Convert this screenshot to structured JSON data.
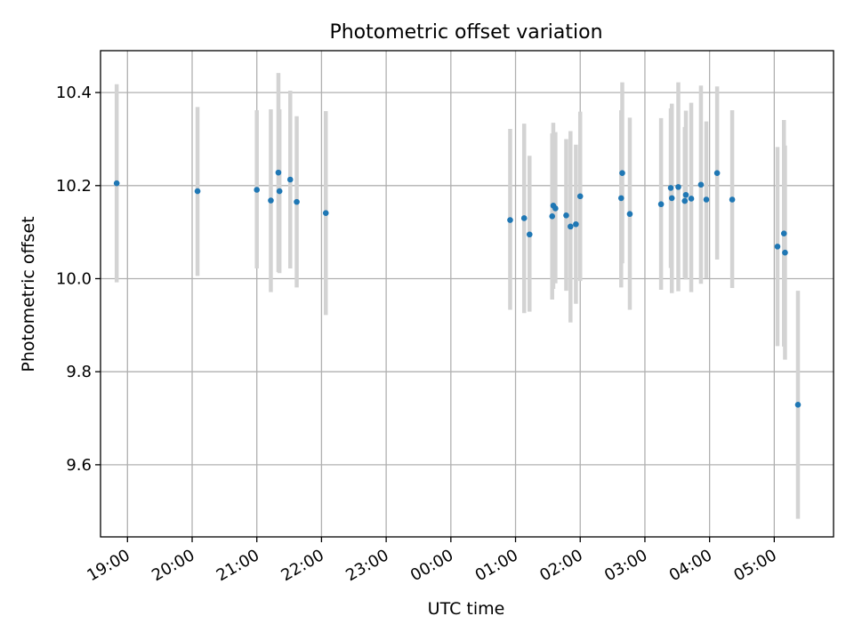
{
  "chart_data": {
    "type": "scatter",
    "title": "Photometric offset variation",
    "xlabel": "UTC time",
    "ylabel": "Photometric offset",
    "x_is_time": true,
    "xlim": [
      "18:35",
      "29:55"
    ],
    "ylim": [
      9.445,
      10.49
    ],
    "grid": true,
    "x_ticks": [
      {
        "t": "19:00",
        "label": "19:00"
      },
      {
        "t": "20:00",
        "label": "20:00"
      },
      {
        "t": "21:00",
        "label": "21:00"
      },
      {
        "t": "22:00",
        "label": "22:00"
      },
      {
        "t": "23:00",
        "label": "23:00"
      },
      {
        "t": "24:00",
        "label": "00:00"
      },
      {
        "t": "25:00",
        "label": "01:00"
      },
      {
        "t": "26:00",
        "label": "02:00"
      },
      {
        "t": "27:00",
        "label": "03:00"
      },
      {
        "t": "28:00",
        "label": "04:00"
      },
      {
        "t": "29:00",
        "label": "05:00"
      }
    ],
    "y_ticks": [
      {
        "v": 9.6,
        "label": "9.6"
      },
      {
        "v": 9.8,
        "label": "9.8"
      },
      {
        "v": 10.0,
        "label": "10.0"
      },
      {
        "v": 10.2,
        "label": "10.2"
      },
      {
        "v": 10.4,
        "label": "10.4"
      }
    ],
    "colors": {
      "points": "#1f77b4",
      "errorbars": "#d3d3d3",
      "grid": "#b0b0b0"
    },
    "series": [
      {
        "points": [
          {
            "t": "18:50",
            "y": 10.205,
            "lo": 9.992,
            "hi": 10.418
          },
          {
            "t": "20:05",
            "y": 10.188,
            "lo": 10.006,
            "hi": 10.369
          },
          {
            "t": "21:00",
            "y": 10.191,
            "lo": 10.022,
            "hi": 10.362
          },
          {
            "t": "21:13",
            "y": 10.168,
            "lo": 9.971,
            "hi": 10.364
          },
          {
            "t": "21:20",
            "y": 10.228,
            "lo": 10.014,
            "hi": 10.442
          },
          {
            "t": "21:21",
            "y": 10.188,
            "lo": 10.012,
            "hi": 10.364
          },
          {
            "t": "21:31",
            "y": 10.213,
            "lo": 10.022,
            "hi": 10.404
          },
          {
            "t": "21:37",
            "y": 10.165,
            "lo": 9.981,
            "hi": 10.349
          },
          {
            "t": "22:04",
            "y": 10.141,
            "lo": 9.922,
            "hi": 10.36
          },
          {
            "t": "24:55",
            "y": 10.126,
            "lo": 9.933,
            "hi": 10.322
          },
          {
            "t": "25:08",
            "y": 10.13,
            "lo": 9.926,
            "hi": 10.333
          },
          {
            "t": "25:13",
            "y": 10.095,
            "lo": 9.929,
            "hi": 10.264
          },
          {
            "t": "25:34",
            "y": 10.134,
            "lo": 9.955,
            "hi": 10.312
          },
          {
            "t": "25:35",
            "y": 10.157,
            "lo": 9.978,
            "hi": 10.335
          },
          {
            "t": "25:37",
            "y": 10.151,
            "lo": 9.99,
            "hi": 10.315
          },
          {
            "t": "25:47",
            "y": 10.136,
            "lo": 9.974,
            "hi": 10.3
          },
          {
            "t": "25:51",
            "y": 10.112,
            "lo": 9.906,
            "hi": 10.317
          },
          {
            "t": "25:56",
            "y": 10.117,
            "lo": 9.946,
            "hi": 10.288
          },
          {
            "t": "26:00",
            "y": 10.177,
            "lo": 9.995,
            "hi": 10.359
          },
          {
            "t": "26:38",
            "y": 10.173,
            "lo": 9.981,
            "hi": 10.362
          },
          {
            "t": "26:39",
            "y": 10.227,
            "lo": 10.033,
            "hi": 10.422
          },
          {
            "t": "26:46",
            "y": 10.139,
            "lo": 9.933,
            "hi": 10.346
          },
          {
            "t": "27:15",
            "y": 10.16,
            "lo": 9.976,
            "hi": 10.345
          },
          {
            "t": "27:24",
            "y": 10.195,
            "lo": 10.023,
            "hi": 10.366
          },
          {
            "t": "27:25",
            "y": 10.173,
            "lo": 9.969,
            "hi": 10.376
          },
          {
            "t": "27:31",
            "y": 10.197,
            "lo": 9.973,
            "hi": 10.422
          },
          {
            "t": "27:37",
            "y": 10.167,
            "lo": 10.002,
            "hi": 10.326
          },
          {
            "t": "27:38",
            "y": 10.18,
            "lo": 9.998,
            "hi": 10.361
          },
          {
            "t": "27:43",
            "y": 10.172,
            "lo": 9.971,
            "hi": 10.378
          },
          {
            "t": "27:52",
            "y": 10.202,
            "lo": 9.989,
            "hi": 10.415
          },
          {
            "t": "27:57",
            "y": 10.17,
            "lo": 10.001,
            "hi": 10.338
          },
          {
            "t": "28:07",
            "y": 10.227,
            "lo": 10.041,
            "hi": 10.413
          },
          {
            "t": "28:21",
            "y": 10.17,
            "lo": 9.98,
            "hi": 10.362
          },
          {
            "t": "29:03",
            "y": 10.069,
            "lo": 9.855,
            "hi": 10.283
          },
          {
            "t": "29:09",
            "y": 10.097,
            "lo": 9.854,
            "hi": 10.341
          },
          {
            "t": "29:10",
            "y": 10.056,
            "lo": 9.826,
            "hi": 10.286
          },
          {
            "t": "29:22",
            "y": 9.729,
            "lo": 9.484,
            "hi": 9.974
          }
        ]
      }
    ]
  }
}
